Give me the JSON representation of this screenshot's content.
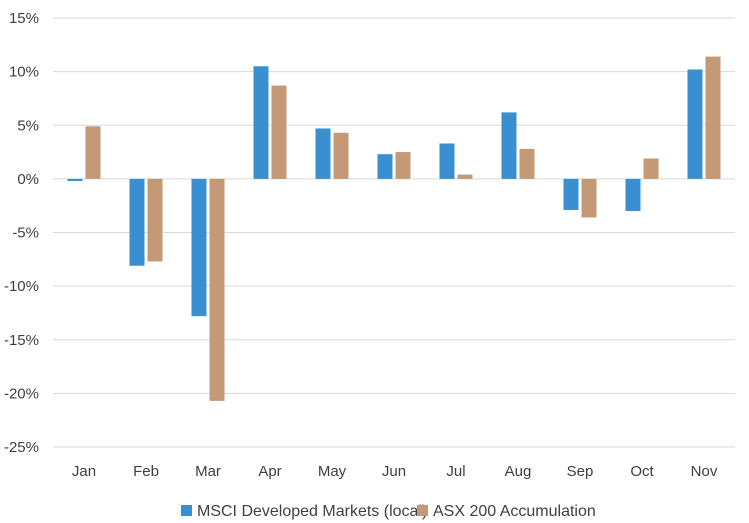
{
  "chart_data": {
    "type": "bar",
    "categories": [
      "Jan",
      "Feb",
      "Mar",
      "Apr",
      "May",
      "Jun",
      "Jul",
      "Aug",
      "Sep",
      "Oct",
      "Nov"
    ],
    "series": [
      {
        "name": "MSCI Developed Markets (local)",
        "color": "#3a8fd1",
        "values": [
          -0.2,
          -8.1,
          -12.8,
          10.5,
          4.7,
          2.3,
          3.3,
          6.2,
          -2.9,
          -3.0,
          10.2
        ]
      },
      {
        "name": "ASX 200 Accumulation",
        "color": "#c49a76",
        "values": [
          4.9,
          -7.7,
          -20.7,
          8.7,
          4.3,
          2.5,
          0.4,
          2.8,
          -3.6,
          1.9,
          11.4
        ]
      }
    ],
    "ylim": [
      -25,
      15
    ],
    "yticks": [
      "15%",
      "10%",
      "5%",
      "0%",
      "-5%",
      "-10%",
      "-15%",
      "-20%",
      "-25%"
    ],
    "ytick_values": [
      15,
      10,
      5,
      0,
      -5,
      -10,
      -15,
      -20,
      -25
    ],
    "grid": true,
    "legend_position": "bottom",
    "title": "",
    "xlabel": "",
    "ylabel": ""
  }
}
